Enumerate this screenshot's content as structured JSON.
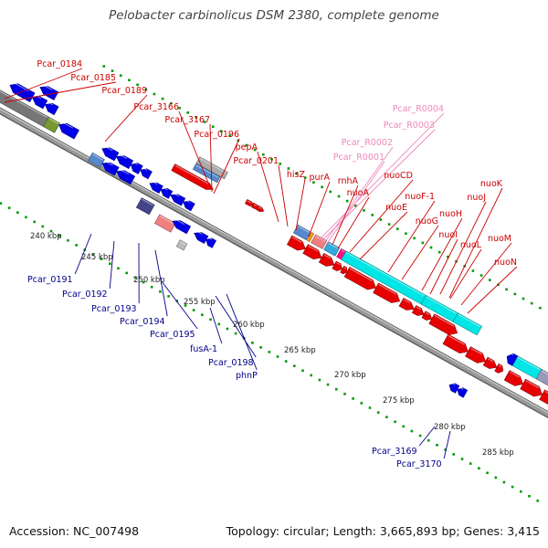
{
  "title": "Pelobacter carbinolicus DSM 2380, complete genome",
  "footer": {
    "accession": "Accession: NC_007498",
    "summary": "Topology: circular; Length: 3,665,893 bp; Genes: 3,415"
  },
  "colors": {
    "forward_gene": "#e60000",
    "reverse_gene": "#0000e6",
    "rna_label": "#ee88bb",
    "cyan_block": "#00e5e5",
    "backbone": "#999999",
    "tick_dots": "#009900"
  },
  "scale_ticks": [
    "240 kbp",
    "245 kbp",
    "250 kbp",
    "255 kbp",
    "260 kbp",
    "265 kbp",
    "270 kbp",
    "275 kbp",
    "280 kbp",
    "285 kbp"
  ],
  "upper_labels": [
    {
      "text": "Pcar_0184",
      "color": "#cc0000"
    },
    {
      "text": "Pcar_0185",
      "color": "#cc0000"
    },
    {
      "text": "Pcar_0189",
      "color": "#cc0000"
    },
    {
      "text": "Pcar_3166",
      "color": "#cc0000"
    },
    {
      "text": "Pcar_3167",
      "color": "#cc0000"
    },
    {
      "text": "Pcar_0196",
      "color": "#cc0000"
    },
    {
      "text": "pepA",
      "color": "#cc0000"
    },
    {
      "text": "Pcar_0201",
      "color": "#cc0000"
    },
    {
      "text": "hisZ",
      "color": "#cc0000"
    },
    {
      "text": "purA",
      "color": "#cc0000"
    },
    {
      "text": "Pcar_R0004",
      "color": "#ee88bb"
    },
    {
      "text": "Pcar_R0003",
      "color": "#ee88bb"
    },
    {
      "text": "Pcar_R0002",
      "color": "#ee88bb"
    },
    {
      "text": "Pcar_R0001",
      "color": "#ee88bb"
    },
    {
      "text": "rnhA",
      "color": "#cc0000"
    },
    {
      "text": "nuoA",
      "color": "#cc0000"
    },
    {
      "text": "nuoCD",
      "color": "#cc0000"
    },
    {
      "text": "nuoE",
      "color": "#cc0000"
    },
    {
      "text": "nuoF-1",
      "color": "#cc0000"
    },
    {
      "text": "nuoG",
      "color": "#cc0000"
    },
    {
      "text": "nuoH",
      "color": "#cc0000"
    },
    {
      "text": "nuoI",
      "color": "#cc0000"
    },
    {
      "text": "nuoJ",
      "color": "#cc0000"
    },
    {
      "text": "nuoK",
      "color": "#cc0000"
    },
    {
      "text": "nuoL",
      "color": "#cc0000"
    },
    {
      "text": "nuoM",
      "color": "#cc0000"
    },
    {
      "text": "nuoN",
      "color": "#cc0000"
    }
  ],
  "lower_labels": [
    {
      "text": "Pcar_0191",
      "color": "#00008b"
    },
    {
      "text": "Pcar_0192",
      "color": "#00008b"
    },
    {
      "text": "Pcar_0193",
      "color": "#00008b"
    },
    {
      "text": "Pcar_0194",
      "color": "#00008b"
    },
    {
      "text": "Pcar_0195",
      "color": "#00008b"
    },
    {
      "text": "fusA-1",
      "color": "#00008b"
    },
    {
      "text": "Pcar_0198",
      "color": "#00008b"
    },
    {
      "text": "phnP",
      "color": "#00008b"
    },
    {
      "text": "Pcar_3169",
      "color": "#00008b"
    },
    {
      "text": "Pcar_3170",
      "color": "#00008b"
    }
  ]
}
